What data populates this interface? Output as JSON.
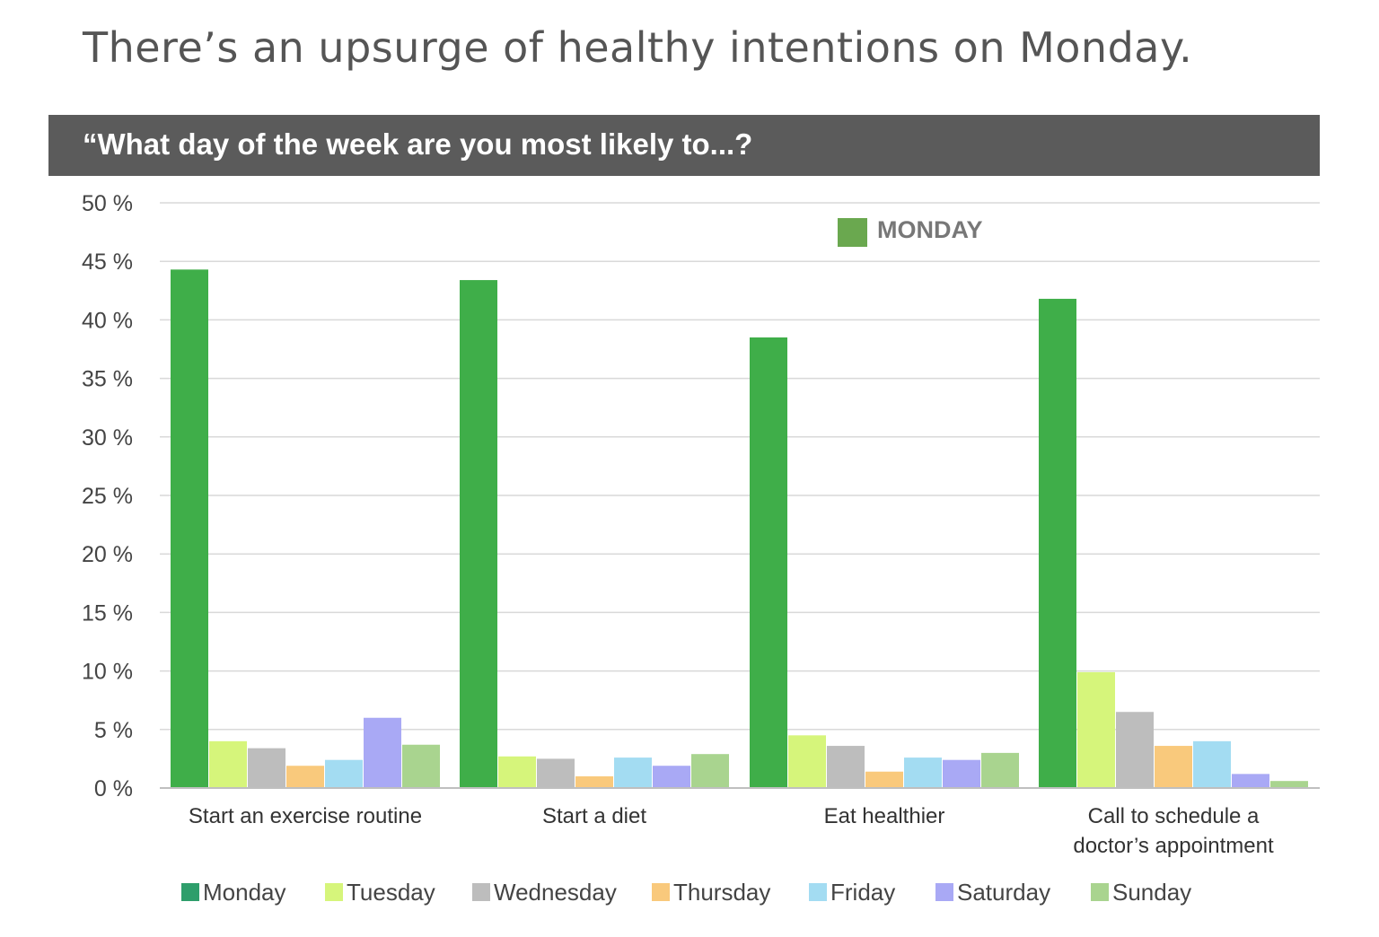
{
  "headline": "There’s an upsurge of healthy intentions on Monday.",
  "banner": "“What day of the week are you most likely to...?",
  "chart_data": {
    "type": "bar",
    "title": "“What day of the week are you most likely to...?",
    "categories": [
      "Start an exercise routine",
      "Start a diet",
      "Eat healthier",
      "Call to schedule a doctor’s appointment"
    ],
    "category_lines": [
      [
        "Start an exercise routine"
      ],
      [
        "Start a diet"
      ],
      [
        "Eat healthier"
      ],
      [
        "Call to schedule a",
        "doctor’s appointment"
      ]
    ],
    "ylim": [
      0,
      50
    ],
    "yticks": [
      0,
      5,
      10,
      15,
      20,
      25,
      30,
      35,
      40,
      45,
      50
    ],
    "ytick_labels": [
      "0 %",
      "5 %",
      "10 %",
      "15 %",
      "20 %",
      "25 %",
      "30 %",
      "35 %",
      "40 %",
      "45 %",
      "50 %"
    ],
    "grid": true,
    "legend_position": "bottom",
    "annotation": {
      "label": "MONDAY",
      "color": "#6aa84f",
      "placement": "top-center"
    },
    "series": [
      {
        "name": "Monday",
        "color": "#3fae49",
        "legend_color": "#2e9e6b",
        "values": [
          44.3,
          43.4,
          38.5,
          41.8
        ]
      },
      {
        "name": "Tuesday",
        "color": "#d6f57b",
        "legend_color": "#d6f57b",
        "values": [
          4.0,
          2.7,
          4.5,
          9.9
        ]
      },
      {
        "name": "Wednesday",
        "color": "#bdbdbd",
        "legend_color": "#bdbdbd",
        "values": [
          3.4,
          2.5,
          3.6,
          6.5
        ]
      },
      {
        "name": "Thursday",
        "color": "#f9c97c",
        "legend_color": "#f9c97c",
        "values": [
          1.9,
          1.0,
          1.4,
          3.6
        ]
      },
      {
        "name": "Friday",
        "color": "#a3dcf2",
        "legend_color": "#a3dcf2",
        "values": [
          2.4,
          2.6,
          2.6,
          4.0
        ]
      },
      {
        "name": "Saturday",
        "color": "#a9a9f5",
        "legend_color": "#a9a9f5",
        "values": [
          6.0,
          1.9,
          2.4,
          1.2
        ]
      },
      {
        "name": "Sunday",
        "color": "#a9d48f",
        "legend_color": "#a9d48f",
        "values": [
          3.7,
          2.9,
          3.0,
          0.6
        ]
      }
    ]
  }
}
